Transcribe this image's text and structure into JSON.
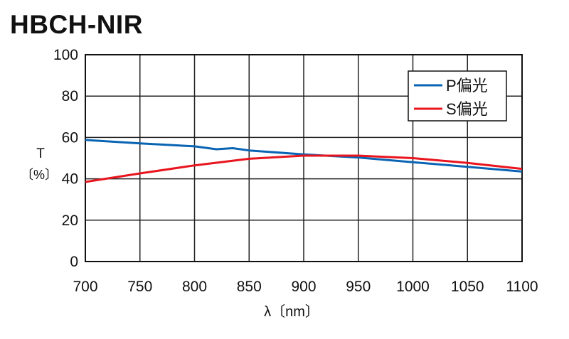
{
  "chart_data": {
    "type": "line",
    "title": "HBCH-NIR",
    "xlabel": "λ〔nm〕",
    "ylabel_top": "T",
    "ylabel_unit": "〔%〕",
    "xlim": [
      700,
      1100
    ],
    "ylim": [
      0,
      100
    ],
    "xticks": [
      700,
      750,
      800,
      850,
      900,
      950,
      1000,
      1050,
      1100
    ],
    "yticks": [
      0,
      20,
      40,
      60,
      80,
      100
    ],
    "grid": true,
    "legend_position": "top-right",
    "series": [
      {
        "name": "P偏光",
        "color": "#0a64b4",
        "x": [
          700,
          750,
          800,
          820,
          835,
          850,
          900,
          950,
          1000,
          1050,
          1100
        ],
        "y": [
          58.8,
          57.1,
          55.7,
          54.3,
          54.8,
          53.7,
          51.8,
          50.3,
          48.0,
          45.8,
          43.5
        ]
      },
      {
        "name": "S偏光",
        "color": "#e8141e",
        "x": [
          700,
          750,
          800,
          850,
          900,
          950,
          1000,
          1050,
          1100
        ],
        "y": [
          38.5,
          42.6,
          46.5,
          49.7,
          51.2,
          51.2,
          50.0,
          47.7,
          44.8
        ]
      }
    ]
  }
}
